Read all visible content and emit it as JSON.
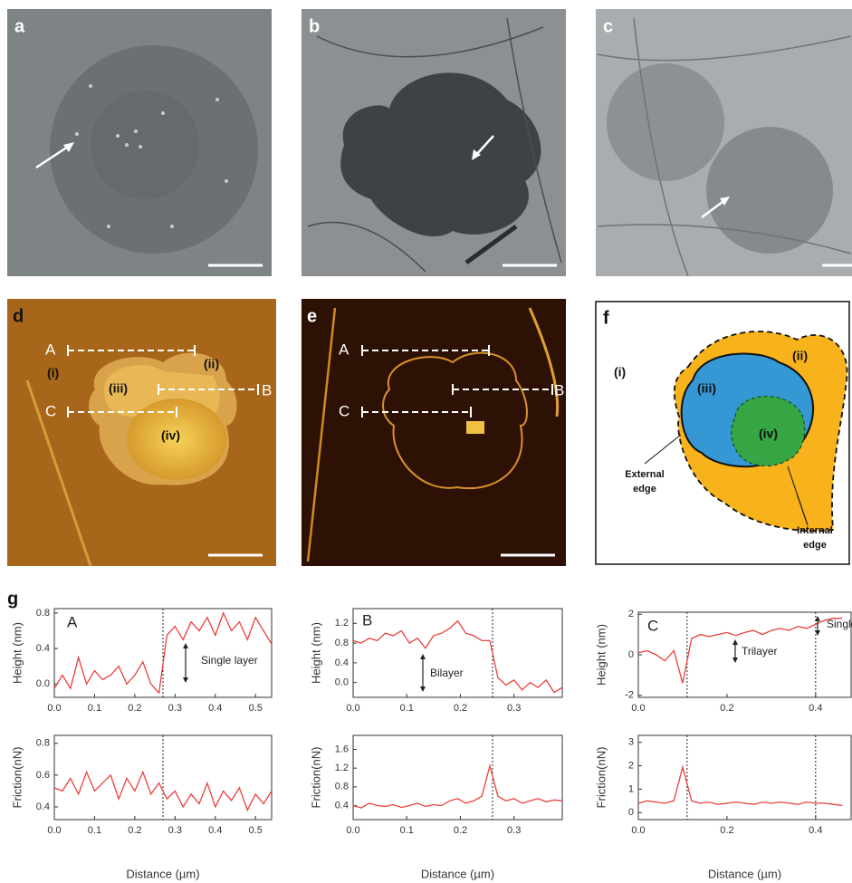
{
  "panels": [
    "a",
    "b",
    "c",
    "d",
    "e",
    "f",
    "g"
  ],
  "panel_d": {
    "lines": [
      "A",
      "B",
      "C"
    ],
    "regions": [
      "(i)",
      "(ii)",
      "(iii)",
      "(iv)"
    ]
  },
  "panel_e": {
    "lines": [
      "A",
      "B",
      "C"
    ]
  },
  "panel_f": {
    "regions": [
      "(i)",
      "(ii)",
      "(iii)",
      "(iv)"
    ],
    "external_edge": [
      "External",
      "edge"
    ],
    "internal_edge": [
      "Internal",
      "edge"
    ]
  },
  "chart_data": [
    {
      "type": "line",
      "ylabel": "Height (nm)",
      "annotations": [
        "A",
        "Single layer"
      ],
      "color": "#e8413c",
      "x": [
        0,
        0.02,
        0.04,
        0.06,
        0.08,
        0.1,
        0.12,
        0.14,
        0.16,
        0.18,
        0.2,
        0.22,
        0.24,
        0.26,
        0.28,
        0.3,
        0.32,
        0.34,
        0.36,
        0.38,
        0.4,
        0.42,
        0.44,
        0.46,
        0.48,
        0.5,
        0.52,
        0.54
      ],
      "values": [
        -0.05,
        0.1,
        -0.05,
        0.3,
        0.0,
        0.15,
        0.05,
        0.1,
        0.2,
        0.0,
        0.1,
        0.25,
        0.0,
        -0.1,
        0.55,
        0.65,
        0.5,
        0.7,
        0.6,
        0.75,
        0.55,
        0.8,
        0.6,
        0.7,
        0.5,
        0.75,
        0.6,
        0.45
      ],
      "xlim": [
        0,
        0.54
      ],
      "xticks": [
        {
          "value": 0,
          "label": "0.0"
        },
        0.1,
        0.2,
        0.3,
        0.4,
        0.5
      ],
      "ylim": [
        -0.15,
        0.85
      ],
      "yticks": [
        {
          "value": 0,
          "label": "0.0"
        },
        0.4,
        0.8
      ],
      "guides": [
        0.27
      ]
    },
    {
      "type": "line",
      "ylabel": "Friction(nN)",
      "xlabel": "Distance (µm)",
      "color": "#e8413c",
      "x": [
        0,
        0.02,
        0.04,
        0.06,
        0.08,
        0.1,
        0.12,
        0.14,
        0.16,
        0.18,
        0.2,
        0.22,
        0.24,
        0.26,
        0.28,
        0.3,
        0.32,
        0.34,
        0.36,
        0.38,
        0.4,
        0.42,
        0.44,
        0.46,
        0.48,
        0.5,
        0.52,
        0.54
      ],
      "values": [
        0.52,
        0.5,
        0.58,
        0.48,
        0.62,
        0.5,
        0.55,
        0.6,
        0.45,
        0.58,
        0.5,
        0.62,
        0.48,
        0.55,
        0.45,
        0.5,
        0.4,
        0.48,
        0.42,
        0.55,
        0.4,
        0.5,
        0.44,
        0.52,
        0.38,
        0.48,
        0.42,
        0.5
      ],
      "xlim": [
        0,
        0.54
      ],
      "xticks": [
        {
          "value": 0,
          "label": "0.0"
        },
        0.1,
        0.2,
        0.3,
        0.4,
        0.5
      ],
      "ylim": [
        0.32,
        0.85
      ],
      "yticks": [
        0.4,
        0.6,
        0.8
      ],
      "guides": [
        0.27
      ]
    },
    {
      "type": "line",
      "ylabel": "Height (nm)",
      "annotations": [
        "B",
        "Bilayer"
      ],
      "color": "#e8413c",
      "x": [
        0,
        0.015,
        0.03,
        0.045,
        0.06,
        0.075,
        0.09,
        0.105,
        0.12,
        0.135,
        0.15,
        0.165,
        0.18,
        0.195,
        0.21,
        0.225,
        0.24,
        0.255,
        0.27,
        0.285,
        0.3,
        0.315,
        0.33,
        0.345,
        0.36,
        0.375,
        0.39
      ],
      "values": [
        0.85,
        0.8,
        0.9,
        0.85,
        1.0,
        0.95,
        1.05,
        0.8,
        0.9,
        0.7,
        0.95,
        1.0,
        1.1,
        1.25,
        1.0,
        0.95,
        0.85,
        0.85,
        0.1,
        -0.05,
        0.05,
        -0.15,
        0.0,
        -0.1,
        0.05,
        -0.2,
        -0.1
      ],
      "xlim": [
        0,
        0.39
      ],
      "xticks": [
        {
          "value": 0,
          "label": "0.0"
        },
        0.1,
        0.2,
        0.3
      ],
      "ylim": [
        -0.3,
        1.5
      ],
      "yticks": [
        {
          "value": 0,
          "label": "0.0"
        },
        0.4,
        0.8,
        1.2
      ],
      "guides": [
        0.26
      ]
    },
    {
      "type": "line",
      "ylabel": "Friction(nN)",
      "xlabel": "Distance (µm)",
      "color": "#e8413c",
      "x": [
        0,
        0.015,
        0.03,
        0.045,
        0.06,
        0.075,
        0.09,
        0.105,
        0.12,
        0.135,
        0.15,
        0.165,
        0.18,
        0.195,
        0.21,
        0.225,
        0.24,
        0.255,
        0.27,
        0.285,
        0.3,
        0.315,
        0.33,
        0.345,
        0.36,
        0.375,
        0.39
      ],
      "values": [
        0.4,
        0.35,
        0.45,
        0.4,
        0.38,
        0.42,
        0.36,
        0.4,
        0.45,
        0.38,
        0.42,
        0.4,
        0.5,
        0.55,
        0.45,
        0.5,
        0.6,
        1.25,
        0.6,
        0.5,
        0.55,
        0.45,
        0.5,
        0.55,
        0.48,
        0.52,
        0.5
      ],
      "xlim": [
        0,
        0.39
      ],
      "xticks": [
        {
          "value": 0,
          "label": "0.0"
        },
        0.1,
        0.2,
        0.3
      ],
      "ylim": [
        0.1,
        1.9
      ],
      "yticks": [
        0.4,
        0.8,
        1.2,
        1.6
      ],
      "guides": [
        0.26
      ]
    },
    {
      "type": "line",
      "ylabel": "Height (nm)",
      "annotations": [
        "C",
        "Trilayer",
        "Single layer"
      ],
      "color": "#e8413c",
      "x": [
        0,
        0.02,
        0.04,
        0.06,
        0.08,
        0.1,
        0.12,
        0.14,
        0.16,
        0.18,
        0.2,
        0.22,
        0.24,
        0.26,
        0.28,
        0.3,
        0.32,
        0.34,
        0.36,
        0.38,
        0.4,
        0.42,
        0.44,
        0.46
      ],
      "values": [
        0.1,
        0.2,
        0.0,
        -0.3,
        0.2,
        -1.4,
        0.8,
        1.0,
        0.9,
        1.0,
        1.1,
        0.95,
        1.1,
        1.2,
        1.0,
        1.2,
        1.3,
        1.2,
        1.4,
        1.3,
        1.5,
        1.7,
        1.8,
        1.8
      ],
      "xlim": [
        0,
        0.48
      ],
      "xticks": [
        {
          "value": 0,
          "label": "0.0"
        },
        0.2,
        0.4
      ],
      "ylim": [
        -2.1,
        2.1
      ],
      "yticks": [
        -2,
        0,
        2
      ],
      "guides": [
        0.11,
        0.4
      ]
    },
    {
      "type": "line",
      "ylabel": "Friction(nN)",
      "xlabel": "Distance (µm)",
      "color": "#e8413c",
      "x": [
        0,
        0.02,
        0.04,
        0.06,
        0.08,
        0.1,
        0.12,
        0.14,
        0.16,
        0.18,
        0.2,
        0.22,
        0.24,
        0.26,
        0.28,
        0.3,
        0.32,
        0.34,
        0.36,
        0.38,
        0.4,
        0.42,
        0.44,
        0.46
      ],
      "values": [
        0.4,
        0.5,
        0.45,
        0.4,
        0.5,
        1.95,
        0.5,
        0.4,
        0.45,
        0.35,
        0.4,
        0.45,
        0.4,
        0.35,
        0.45,
        0.4,
        0.45,
        0.4,
        0.35,
        0.45,
        0.4,
        0.4,
        0.35,
        0.3
      ],
      "xlim": [
        0,
        0.48
      ],
      "xticks": [
        {
          "value": 0,
          "label": "0.0"
        },
        0.2,
        0.4
      ],
      "ylim": [
        -0.3,
        3.3
      ],
      "yticks": [
        0,
        1,
        2,
        3
      ],
      "guides": [
        0.11,
        0.4
      ]
    }
  ]
}
